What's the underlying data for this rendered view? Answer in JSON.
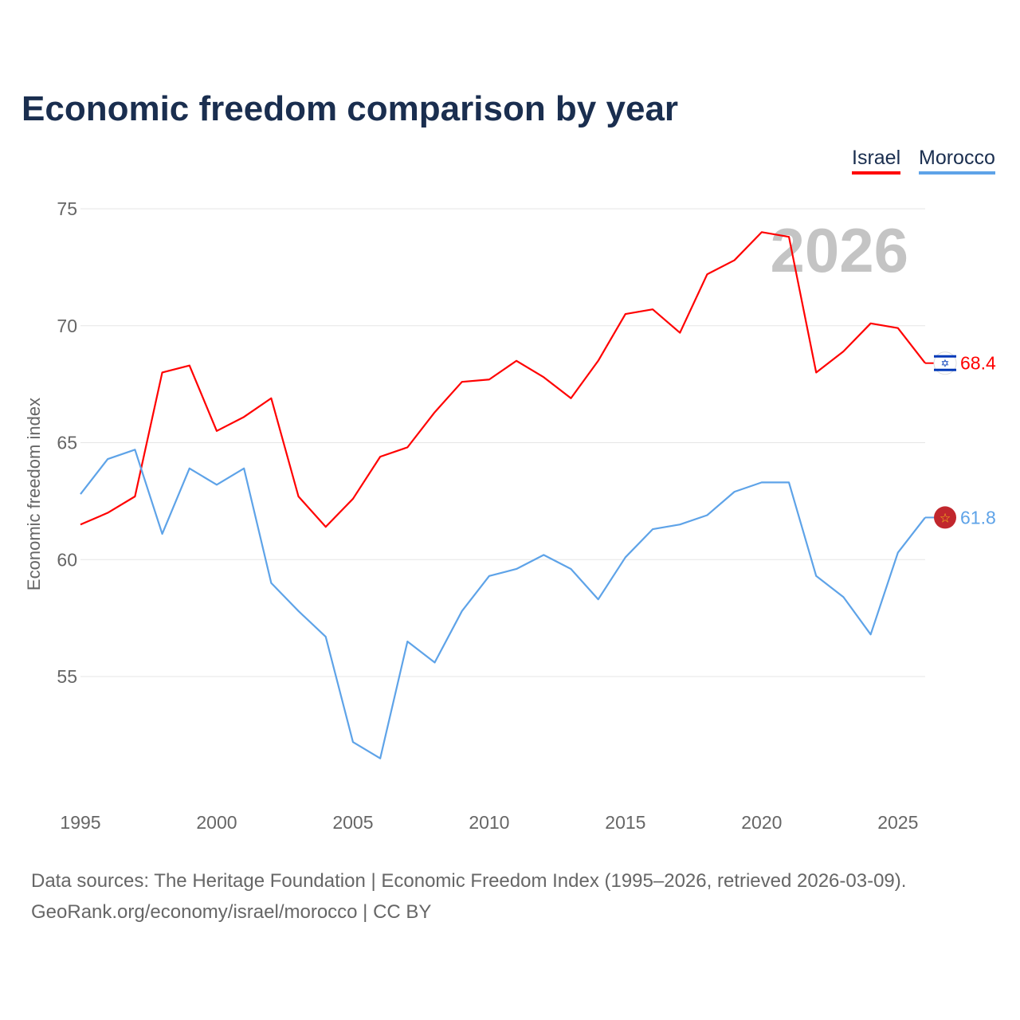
{
  "title": "Economic freedom comparison by year",
  "chart_data": {
    "type": "line",
    "title": "Economic freedom comparison by year",
    "xlabel": "",
    "ylabel": "Economic freedom index",
    "xlim": [
      1995,
      2026
    ],
    "ylim": [
      50,
      75
    ],
    "yticks": [
      55,
      60,
      65,
      70,
      75
    ],
    "xticks": [
      1995,
      2000,
      2005,
      2010,
      2015,
      2020,
      2025
    ],
    "grid": true,
    "legend_placement": "top-right",
    "watermark_year": "2026",
    "x": [
      1995,
      1996,
      1997,
      1998,
      1999,
      2000,
      2001,
      2002,
      2003,
      2004,
      2005,
      2006,
      2007,
      2008,
      2009,
      2010,
      2011,
      2012,
      2013,
      2014,
      2015,
      2016,
      2017,
      2018,
      2019,
      2020,
      2021,
      2022,
      2023,
      2024,
      2025,
      2026
    ],
    "series": [
      {
        "name": "Israel",
        "color": "#ff0000",
        "end_label": "68.4",
        "values": [
          61.5,
          62.0,
          62.7,
          68.0,
          68.3,
          65.5,
          66.1,
          66.9,
          62.7,
          61.4,
          62.6,
          64.4,
          64.8,
          66.3,
          67.6,
          67.7,
          68.5,
          67.8,
          66.9,
          68.5,
          70.5,
          70.7,
          69.7,
          72.2,
          72.8,
          74.0,
          73.8,
          68.0,
          68.9,
          70.1,
          69.9,
          68.4
        ]
      },
      {
        "name": "Morocco",
        "color": "#5ea3e8",
        "end_label": "61.8",
        "values": [
          62.8,
          64.3,
          64.7,
          61.1,
          63.9,
          63.2,
          63.9,
          59.0,
          57.8,
          56.7,
          52.2,
          51.5,
          56.5,
          55.6,
          57.8,
          59.3,
          59.6,
          60.2,
          59.6,
          58.3,
          60.1,
          61.3,
          61.5,
          61.9,
          62.9,
          63.3,
          63.3,
          59.3,
          58.4,
          56.8,
          60.3,
          61.8
        ]
      }
    ]
  },
  "footer": {
    "line1": "Data sources: The Heritage Foundation | Economic Freedom Index (1995–2026, retrieved 2026-03-09).",
    "line2": "GeoRank.org/economy/israel/morocco | CC BY"
  }
}
